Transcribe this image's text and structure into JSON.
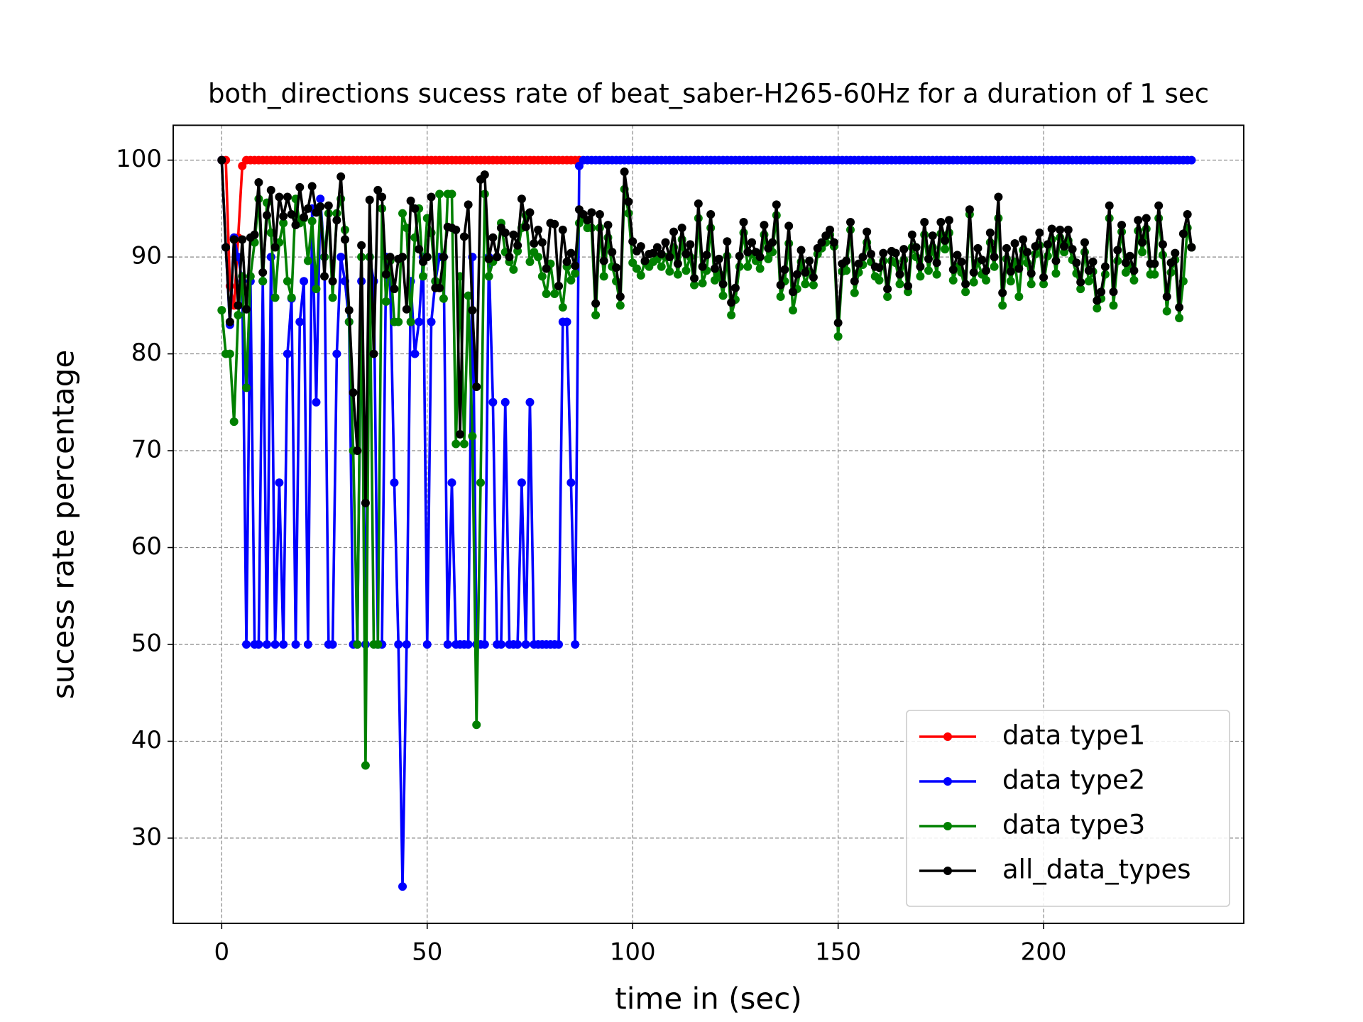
{
  "chart_data": {
    "type": "line",
    "title": "both_directions sucess rate of beat_saber-H265-60Hz for a duration of 1 sec",
    "x_label": "time in (sec)",
    "y_label": "sucess rate percentage",
    "xlim": [
      -11.8,
      248.7
    ],
    "ylim": [
      21.2,
      103.6
    ],
    "xticks": [
      0,
      50,
      100,
      150,
      200
    ],
    "yticks": [
      30,
      40,
      50,
      60,
      70,
      80,
      90,
      100
    ],
    "grid": true,
    "legend": "lower right",
    "x": [
      0,
      1,
      2,
      3,
      4,
      5,
      6,
      7,
      8,
      9,
      10,
      11,
      12,
      13,
      14,
      15,
      16,
      17,
      18,
      19,
      20,
      21,
      22,
      23,
      24,
      25,
      26,
      27,
      28,
      29,
      30,
      31,
      32,
      33,
      34,
      35,
      36,
      37,
      38,
      39,
      40,
      41,
      42,
      43,
      44,
      45,
      46,
      47,
      48,
      49,
      50,
      51,
      52,
      53,
      54,
      55,
      56,
      57,
      58,
      59,
      60,
      61,
      62,
      63,
      64,
      65,
      66,
      67,
      68,
      69,
      70,
      71,
      72,
      73,
      74,
      75,
      76,
      77,
      78,
      79,
      80,
      81,
      82,
      83,
      84,
      85,
      86,
      87,
      88,
      89,
      90,
      91,
      92,
      93,
      94,
      95,
      96,
      97,
      98,
      99,
      100,
      101,
      102,
      103,
      104,
      105,
      106,
      107,
      108,
      109,
      110,
      111,
      112,
      113,
      114,
      115,
      116,
      117,
      118,
      119,
      120,
      121,
      122,
      123,
      124,
      125,
      126,
      127,
      128,
      129,
      130,
      131,
      132,
      133,
      134,
      135,
      136,
      137,
      138,
      139,
      140,
      141,
      142,
      143,
      144,
      145,
      146,
      147,
      148,
      149,
      150,
      151,
      152,
      153,
      154,
      155,
      156,
      157,
      158,
      159,
      160,
      161,
      162,
      163,
      164,
      165,
      166,
      167,
      168,
      169,
      170,
      171,
      172,
      173,
      174,
      175,
      176,
      177,
      178,
      179,
      180,
      181,
      182,
      183,
      184,
      185,
      186,
      187,
      188,
      189,
      190,
      191,
      192,
      193,
      194,
      195,
      196,
      197,
      198,
      199,
      200,
      201,
      202,
      203,
      204,
      205,
      206,
      207,
      208,
      209,
      210,
      211,
      212,
      213,
      214,
      215,
      216,
      217,
      218,
      219,
      220,
      221,
      222,
      223,
      224,
      225,
      226,
      227,
      228,
      229,
      230,
      231,
      232,
      233,
      234,
      235,
      236
    ],
    "series": [
      {
        "name": "data type1",
        "color": "#ff0000",
        "values": [
          100,
          100,
          87,
          85,
          92,
          99.4,
          100,
          100,
          100,
          100,
          100,
          100,
          100,
          100,
          100,
          100,
          100,
          100,
          100,
          100,
          100,
          100,
          100,
          100,
          100,
          100,
          100,
          100,
          100,
          100,
          100,
          100,
          100,
          100,
          100,
          100,
          100,
          100,
          100,
          100,
          100,
          100,
          100,
          100,
          100,
          100,
          100,
          100,
          100,
          100,
          100,
          100,
          100,
          100,
          100,
          100,
          100,
          100,
          100,
          100,
          100,
          100,
          100,
          100,
          100,
          100,
          100,
          100,
          100,
          100,
          100,
          100,
          100,
          100,
          100,
          100,
          100,
          100,
          100,
          100,
          100,
          100,
          100,
          100,
          100,
          100,
          100,
          100,
          null,
          null,
          null,
          null,
          null,
          null,
          null,
          null,
          null,
          null,
          null,
          null,
          null,
          null,
          null,
          null,
          null,
          null,
          null,
          null,
          null,
          null,
          null,
          null,
          null,
          null,
          null,
          null,
          null,
          null,
          null,
          null,
          null,
          null,
          null,
          null,
          null,
          null,
          null,
          null,
          null,
          null,
          null,
          null,
          null,
          null,
          null,
          null,
          null,
          null,
          null,
          null,
          null,
          null,
          null,
          null,
          null,
          null,
          null,
          null,
          null,
          null,
          null,
          null,
          null,
          null,
          null,
          null,
          null,
          null,
          null,
          null,
          null,
          null,
          null,
          null,
          null,
          null,
          null,
          null,
          null,
          null,
          null,
          null,
          null,
          null,
          null,
          null,
          null,
          null,
          null,
          null,
          null,
          null,
          null,
          null,
          null,
          null,
          null,
          null,
          null,
          null,
          null,
          null,
          null,
          null,
          null,
          null,
          null,
          null,
          null,
          null,
          null,
          null,
          null,
          null,
          null,
          null,
          null,
          null,
          null,
          null,
          null,
          null,
          null,
          null,
          null,
          null,
          null,
          null,
          null,
          null,
          null,
          null,
          null,
          null,
          null,
          null,
          null,
          null,
          null,
          null,
          null,
          null,
          null,
          null,
          null,
          null,
          null
        ]
      },
      {
        "name": "data type2",
        "color": "#0000ff",
        "values": [
          100,
          91,
          83,
          92,
          90,
          87.5,
          50,
          87.5,
          50,
          50,
          87.5,
          50,
          90,
          50,
          66.7,
          50,
          80,
          85.7,
          50,
          83.3,
          87.5,
          50,
          95,
          75,
          96,
          90,
          50,
          50,
          80,
          90,
          87.5,
          83.3,
          50,
          50,
          87.5,
          50,
          90,
          87.5,
          50,
          50,
          90,
          87.5,
          66.7,
          50,
          25,
          50,
          87.5,
          80,
          83.3,
          90,
          50,
          83.3,
          87.5,
          90,
          90,
          50,
          66.7,
          50,
          50,
          50,
          50,
          90,
          50,
          50,
          50,
          90,
          75,
          50,
          50,
          75,
          50,
          50,
          50,
          66.7,
          50,
          75,
          50,
          50,
          50,
          50,
          50,
          50,
          50,
          83.3,
          83.3,
          66.7,
          50,
          99.4,
          100,
          100,
          100,
          100,
          100,
          100,
          100,
          100,
          100,
          100,
          100,
          100,
          100,
          100,
          100,
          100,
          100,
          100,
          100,
          100,
          100,
          100,
          100,
          100,
          100,
          100,
          100,
          100,
          100,
          100,
          100,
          100,
          100,
          100,
          100,
          100,
          100,
          100,
          100,
          100,
          100,
          100,
          100,
          100,
          100,
          100,
          100,
          100,
          100,
          100,
          100,
          100,
          100,
          100,
          100,
          100,
          100,
          100,
          100,
          100,
          100,
          100,
          100,
          100,
          100,
          100,
          100,
          100,
          100,
          100,
          100,
          100,
          100,
          100,
          100,
          100,
          100,
          100,
          100,
          100,
          100,
          100,
          100,
          100,
          100,
          100,
          100,
          100,
          100,
          100,
          100,
          100,
          100,
          100,
          100,
          100,
          100,
          100,
          100,
          100,
          100,
          100,
          100,
          100,
          100,
          100,
          100,
          100,
          100,
          100,
          100,
          100,
          100,
          100,
          100,
          100,
          100,
          100,
          100,
          100,
          100,
          100,
          100,
          100,
          100,
          100,
          100,
          100,
          100,
          100,
          100,
          100,
          100,
          100,
          100,
          100,
          100,
          100,
          100,
          100,
          100,
          100,
          100,
          100,
          100,
          100,
          100,
          100,
          100
        ]
      },
      {
        "name": "data type3",
        "color": "#008000",
        "values": [
          84.5,
          80,
          80,
          73,
          84,
          88,
          76.5,
          88,
          91.5,
          96,
          87.5,
          95.6,
          92.5,
          85.8,
          91.5,
          93.5,
          87.5,
          85.8,
          96,
          93.5,
          94,
          89.6,
          93.7,
          86.7,
          95.2,
          90,
          94.5,
          85.8,
          94.5,
          96,
          92.8,
          83.3,
          70,
          50,
          90,
          37.5,
          90,
          50,
          50,
          95,
          85.4,
          89.6,
          83.3,
          83.3,
          94.5,
          93,
          83.3,
          92,
          95,
          88,
          94,
          92.5,
          87.5,
          96.5,
          85.7,
          96.5,
          96.5,
          70.7,
          88,
          70.7,
          86,
          71.5,
          41.7,
          66.7,
          96.5,
          88,
          89.5,
          90,
          93.5,
          90.5,
          89.5,
          88.7,
          90.6,
          93,
          94.3,
          89.5,
          90.5,
          90,
          88,
          86.2,
          89.3,
          86.2,
          87,
          84.8,
          89,
          87.6,
          88.3,
          93.5,
          94,
          93,
          93,
          84,
          93,
          88,
          92,
          89,
          87.5,
          85,
          97,
          94.5,
          89.4,
          88.8,
          88.1,
          89.5,
          89,
          89.5,
          89.8,
          89,
          90,
          88.5,
          91,
          88.2,
          91.8,
          88.6,
          90,
          87.1,
          94,
          87.3,
          88.6,
          93,
          87.6,
          88.3,
          86,
          90.1,
          84,
          85.6,
          89,
          92.5,
          89,
          90.3,
          89.6,
          88.8,
          92.3,
          89.8,
          90.5,
          94.3,
          85.9,
          87.5,
          91.4,
          84.5,
          86.7,
          89.5,
          87.2,
          88.5,
          87.1,
          90.3,
          90.9,
          91.5,
          92.3,
          91.1,
          81.8,
          88.5,
          88.6,
          92.8,
          86.3,
          88.4,
          89.2,
          91.5,
          89.5,
          88,
          87.6,
          89.6,
          85.9,
          89.6,
          89.4,
          87.2,
          89.7,
          86.4,
          91,
          90,
          88,
          92.3,
          88.6,
          91,
          88.2,
          92.4,
          90.8,
          92.5,
          87.6,
          89,
          88.4,
          86.4,
          94.4,
          87.4,
          89.5,
          88.2,
          87.6,
          91.5,
          89,
          94,
          85,
          89.8,
          87.5,
          89.5,
          85.9,
          90.7,
          89.4,
          87.2,
          90.3,
          91.2,
          87.2,
          90.1,
          91.8,
          88.3,
          92,
          90.5,
          91.7,
          89.7,
          88.3,
          86.7,
          90.5,
          87.5,
          88.5,
          84.7,
          85.7,
          88.2,
          94,
          85,
          89.6,
          92.6,
          88.4,
          89.1,
          87.6,
          92.7,
          90.5,
          92.9,
          88.2,
          88.2,
          94,
          90.2,
          84.4,
          88.4,
          89.7,
          83.7,
          87.5,
          93,
          91
        ]
      },
      {
        "name": "all_data_types",
        "color": "#000000",
        "values": [
          100,
          91,
          83.3,
          91.8,
          85,
          91.8,
          84.6,
          92,
          92.3,
          97.7,
          88.4,
          94.3,
          96.9,
          91,
          96.2,
          94.2,
          96.2,
          94.4,
          93.3,
          97.2,
          94.1,
          95,
          97.3,
          94.6,
          95.2,
          88,
          95.3,
          87.5,
          93.8,
          98.3,
          91.8,
          84.5,
          76,
          70,
          91.2,
          64.6,
          95.9,
          80,
          96.9,
          96.2,
          88.2,
          90,
          86.7,
          89.8,
          90,
          84.6,
          95.8,
          95,
          90.8,
          89.5,
          90,
          96.2,
          86.8,
          86.8,
          90,
          93.1,
          93,
          92.8,
          71.7,
          92.1,
          95.4,
          84.5,
          76.6,
          98,
          98.5,
          89.8,
          92,
          90,
          93,
          92.5,
          90,
          92.3,
          91.2,
          96,
          93.1,
          94.6,
          91.4,
          92.8,
          91.5,
          88.8,
          93.5,
          93.4,
          87,
          92.8,
          89.5,
          90.4,
          89.1,
          94.9,
          94.4,
          93.8,
          94.6,
          85.2,
          94.4,
          89.6,
          93.3,
          90.5,
          88.9,
          85.9,
          98.8,
          95.7,
          91.6,
          90.6,
          91.1,
          89.6,
          90.3,
          90.4,
          91,
          90.3,
          91.5,
          90,
          92.6,
          89.3,
          93,
          90.3,
          91.3,
          87.8,
          95.5,
          89,
          90.2,
          94.4,
          88.8,
          89.8,
          87.2,
          91.6,
          85.3,
          86.8,
          90.1,
          93.6,
          90.5,
          91.5,
          90.5,
          90,
          93.3,
          90.9,
          91.5,
          95.4,
          87.1,
          88.7,
          93.2,
          86.4,
          88.2,
          90.7,
          88.4,
          89.6,
          87.9,
          90.9,
          91.5,
          92.2,
          92.8,
          91.5,
          83.2,
          89.3,
          89.6,
          93.6,
          87.5,
          89.3,
          90,
          92.6,
          90.3,
          89,
          88.9,
          90.4,
          86.7,
          90.6,
          90.4,
          88.2,
          90.8,
          87,
          92.3,
          91,
          89,
          93.6,
          89.8,
          92.2,
          89.4,
          93.6,
          91.7,
          93.8,
          88.7,
          90.2,
          89.5,
          87.2,
          94.9,
          88.4,
          90.9,
          89.7,
          88.6,
          92.5,
          90,
          96.2,
          86.3,
          90.9,
          88.5,
          91.4,
          88.8,
          91.8,
          90.5,
          88.3,
          91.1,
          92.5,
          87.9,
          91.3,
          92.9,
          89.6,
          92.8,
          91.1,
          92.8,
          90.8,
          89.4,
          87.4,
          91.5,
          88.6,
          89.5,
          85.5,
          86.4,
          89,
          95.3,
          86.4,
          90.7,
          93.3,
          89.4,
          90.1,
          88.6,
          93.8,
          91.5,
          94,
          89.3,
          89.3,
          95.3,
          91.3,
          85.9,
          89.4,
          90.4,
          84.8,
          92.4,
          94.4,
          91
        ]
      }
    ]
  }
}
